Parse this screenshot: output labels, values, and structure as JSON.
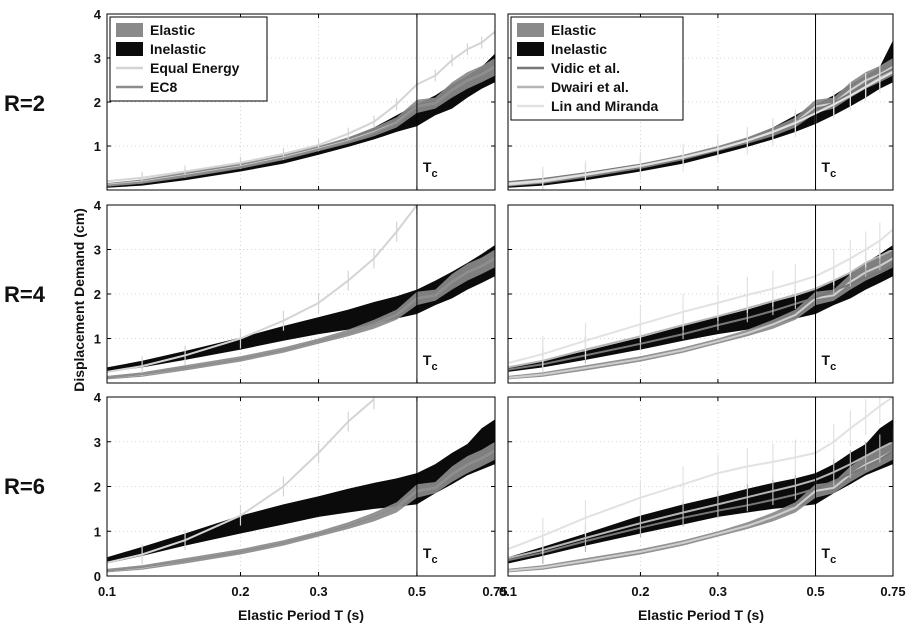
{
  "rows": [
    {
      "label": "R=2"
    },
    {
      "label": "R=4"
    },
    {
      "label": "R=6"
    }
  ],
  "xlabel": "Elastic Period T (s)",
  "ylabel": "Displacement Demand (cm)",
  "tc_label": "T",
  "tc_sub": "c",
  "xtick_labels": [
    "0.1",
    "0.2",
    "0.3",
    "0.5",
    "0.75"
  ],
  "ytick_labels_top": [
    "1",
    "2",
    "3",
    "4"
  ],
  "ytick_labels_mid": [
    "1",
    "2",
    "3",
    "4"
  ],
  "ytick_labels_bot": [
    "0",
    "1",
    "2",
    "3",
    "4"
  ],
  "colors": {
    "elastic": "#8a8a8a",
    "inelastic": "#0b0b0b",
    "equal_energy": "#d4d4d4",
    "ec8": "#8c8c8c",
    "vidic": "#777777",
    "dwairi": "#b5b5b5",
    "lin_miranda": "#e2e2e2",
    "mean_line": "#cfcfcf"
  },
  "legend_left": [
    {
      "name": "Elastic",
      "kind": "patch",
      "color_key": "elastic"
    },
    {
      "name": "Inelastic",
      "kind": "patch",
      "color_key": "inelastic"
    },
    {
      "name": "Equal Energy",
      "kind": "line",
      "color_key": "equal_energy"
    },
    {
      "name": "EC8",
      "kind": "line",
      "color_key": "ec8"
    }
  ],
  "legend_right": [
    {
      "name": "Elastic",
      "kind": "patch",
      "color_key": "elastic"
    },
    {
      "name": "Inelastic",
      "kind": "patch",
      "color_key": "inelastic"
    },
    {
      "name": "Vidic et al.",
      "kind": "line",
      "color_key": "vidic"
    },
    {
      "name": "Dwairi et al.",
      "kind": "line",
      "color_key": "dwairi"
    },
    {
      "name": "Lin and Miranda",
      "kind": "line",
      "color_key": "lin_miranda"
    }
  ],
  "chart_data": {
    "type": "area",
    "xscale": "log",
    "xlim": [
      0.1,
      0.75
    ],
    "ylim": [
      0,
      4
    ],
    "xticks": [
      0.1,
      0.2,
      0.3,
      0.5,
      0.75
    ],
    "tc": 0.5,
    "grid": true,
    "x": [
      0.1,
      0.12,
      0.15,
      0.2,
      0.25,
      0.3,
      0.35,
      0.4,
      0.45,
      0.5,
      0.55,
      0.6,
      0.65,
      0.7,
      0.75
    ],
    "elastic_band": {
      "lower": [
        0.08,
        0.14,
        0.28,
        0.48,
        0.68,
        0.88,
        1.05,
        1.22,
        1.42,
        1.75,
        1.85,
        2.1,
        2.3,
        2.45,
        2.6
      ],
      "upper": [
        0.16,
        0.24,
        0.4,
        0.6,
        0.8,
        1.0,
        1.2,
        1.42,
        1.65,
        2.05,
        2.1,
        2.45,
        2.68,
        2.82,
        3.0
      ],
      "mean": [
        0.12,
        0.19,
        0.34,
        0.54,
        0.74,
        0.94,
        1.12,
        1.32,
        1.53,
        1.9,
        1.97,
        2.27,
        2.49,
        2.63,
        2.8
      ]
    },
    "panels": [
      {
        "row": "R=2",
        "column": "left",
        "inelastic_lower": [
          0.05,
          0.1,
          0.22,
          0.42,
          0.6,
          0.8,
          0.98,
          1.15,
          1.32,
          1.45,
          1.7,
          1.85,
          2.1,
          2.3,
          2.45
        ],
        "inelastic_upper": [
          0.15,
          0.22,
          0.38,
          0.58,
          0.78,
          0.98,
          1.18,
          1.42,
          1.7,
          1.95,
          2.15,
          2.4,
          2.6,
          2.8,
          3.1
        ],
        "series": [
          {
            "name": "Equal Energy",
            "color_key": "equal_energy",
            "values": [
              0.2,
              0.28,
              0.42,
              0.62,
              0.82,
              1.02,
              1.28,
              1.55,
              1.95,
              2.4,
              2.6,
              2.95,
              3.2,
              3.35,
              3.6
            ]
          },
          {
            "name": "EC8",
            "color_key": "ec8",
            "values": [
              0.1,
              0.17,
              0.32,
              0.52,
              0.72,
              0.92,
              1.1,
              1.3,
              1.52,
              1.9,
              1.97,
              2.27,
              2.49,
              2.63,
              2.8
            ]
          }
        ]
      },
      {
        "row": "R=2",
        "column": "right",
        "inelastic_lower": [
          0.05,
          0.1,
          0.22,
          0.42,
          0.6,
          0.8,
          0.98,
          1.15,
          1.32,
          1.5,
          1.7,
          1.9,
          2.1,
          2.3,
          2.45
        ],
        "inelastic_upper": [
          0.15,
          0.22,
          0.38,
          0.58,
          0.78,
          0.98,
          1.18,
          1.42,
          1.7,
          1.95,
          2.15,
          2.4,
          2.6,
          2.8,
          3.4
        ],
        "series": [
          {
            "name": "Vidic et al.",
            "color_key": "vidic",
            "values": [
              0.18,
              0.25,
              0.38,
              0.57,
              0.76,
              0.95,
              1.14,
              1.34,
              1.55,
              1.78,
              1.98,
              2.2,
              2.4,
              2.6,
              2.75
            ]
          },
          {
            "name": "Dwairi et al.",
            "color_key": "dwairi",
            "values": [
              0.15,
              0.22,
              0.36,
              0.55,
              0.75,
              0.94,
              1.13,
              1.33,
              1.54,
              1.75,
              1.95,
              2.15,
              2.35,
              2.55,
              2.7
            ]
          },
          {
            "name": "Lin and Miranda",
            "color_key": "lin_miranda",
            "values": [
              0.14,
              0.21,
              0.35,
              0.55,
              0.74,
              0.93,
              1.12,
              1.32,
              1.52,
              1.74,
              1.94,
              2.14,
              2.34,
              2.52,
              2.68
            ]
          }
        ]
      },
      {
        "row": "R=4",
        "column": "left",
        "inelastic_lower": [
          0.25,
          0.35,
          0.52,
          0.75,
          0.95,
          1.1,
          1.2,
          1.32,
          1.45,
          1.55,
          1.75,
          1.9,
          2.1,
          2.25,
          2.4
        ],
        "inelastic_upper": [
          0.35,
          0.5,
          0.72,
          1.02,
          1.28,
          1.48,
          1.65,
          1.82,
          1.95,
          2.1,
          2.3,
          2.5,
          2.7,
          2.9,
          3.1
        ],
        "series": [
          {
            "name": "Equal Energy",
            "color_key": "equal_energy",
            "values": [
              0.25,
              0.38,
              0.62,
              1.0,
              1.4,
              1.8,
              2.3,
              2.8,
              3.4,
              4.0
            ]
          },
          {
            "name": "EC8",
            "color_key": "ec8",
            "values": [
              0.12,
              0.2,
              0.34,
              0.54,
              0.74,
              0.94,
              1.12,
              1.32,
              1.53,
              1.9,
              1.97,
              2.27,
              2.49,
              2.63,
              2.8
            ]
          }
        ]
      },
      {
        "row": "R=4",
        "column": "right",
        "inelastic_lower": [
          0.25,
          0.35,
          0.52,
          0.75,
          0.95,
          1.1,
          1.2,
          1.32,
          1.45,
          1.55,
          1.75,
          1.9,
          2.1,
          2.25,
          2.4
        ],
        "inelastic_upper": [
          0.35,
          0.5,
          0.72,
          1.02,
          1.28,
          1.48,
          1.65,
          1.82,
          1.95,
          2.1,
          2.3,
          2.5,
          2.7,
          2.9,
          3.1
        ],
        "series": [
          {
            "name": "Vidic et al.",
            "color_key": "vidic",
            "values": [
              0.3,
              0.42,
              0.62,
              0.88,
              1.1,
              1.3,
              1.46,
              1.62,
              1.78,
              1.92,
              2.08,
              2.22,
              2.38,
              2.5,
              2.65
            ]
          },
          {
            "name": "Dwairi et al.",
            "color_key": "dwairi",
            "values": [
              0.35,
              0.5,
              0.75,
              1.05,
              1.3,
              1.5,
              1.68,
              1.84,
              1.98,
              2.12,
              2.3,
              2.48,
              2.7,
              2.85,
              3.0
            ]
          },
          {
            "name": "Lin and Miranda",
            "color_key": "lin_miranda",
            "values": [
              0.45,
              0.65,
              0.95,
              1.32,
              1.6,
              1.8,
              1.98,
              2.12,
              2.26,
              2.4,
              2.6,
              2.8,
              3.0,
              3.2,
              3.45
            ]
          }
        ]
      },
      {
        "row": "R=6",
        "column": "left",
        "inelastic_lower": [
          0.28,
          0.45,
          0.68,
          0.95,
          1.15,
          1.32,
          1.42,
          1.5,
          1.55,
          1.6,
          1.85,
          2.05,
          2.25,
          2.38,
          2.5
        ],
        "inelastic_upper": [
          0.42,
          0.65,
          0.95,
          1.35,
          1.6,
          1.78,
          1.95,
          2.08,
          2.18,
          2.3,
          2.5,
          2.75,
          2.95,
          3.3,
          3.5
        ],
        "series": [
          {
            "name": "Equal Energy",
            "color_key": "equal_energy",
            "values": [
              0.3,
              0.48,
              0.8,
              1.35,
              2.0,
              2.75,
              3.45,
              3.95
            ]
          },
          {
            "name": "EC8",
            "color_key": "ec8",
            "values": [
              0.12,
              0.2,
              0.34,
              0.54,
              0.74,
              0.94,
              1.12,
              1.32,
              1.53,
              1.9,
              1.97,
              2.27,
              2.49,
              2.63,
              2.8
            ]
          }
        ]
      },
      {
        "row": "R=6",
        "column": "right",
        "inelastic_lower": [
          0.28,
          0.45,
          0.68,
          0.95,
          1.15,
          1.32,
          1.42,
          1.5,
          1.55,
          1.6,
          1.85,
          2.05,
          2.25,
          2.38,
          2.5
        ],
        "inelastic_upper": [
          0.42,
          0.65,
          0.95,
          1.35,
          1.6,
          1.78,
          1.95,
          2.08,
          2.18,
          2.3,
          2.5,
          2.75,
          2.95,
          3.3,
          3.5
        ],
        "series": [
          {
            "name": "Vidic et al.",
            "color_key": "vidic",
            "values": [
              0.35,
              0.52,
              0.78,
              1.08,
              1.3,
              1.46,
              1.58,
              1.7,
              1.82,
              1.95,
              2.12,
              2.28,
              2.45,
              2.6,
              2.8
            ]
          },
          {
            "name": "Dwairi et al.",
            "color_key": "dwairi",
            "values": [
              0.4,
              0.58,
              0.85,
              1.18,
              1.42,
              1.6,
              1.76,
              1.9,
              2.02,
              2.15,
              2.32,
              2.5,
              2.68,
              2.85,
              3.0
            ]
          },
          {
            "name": "Lin and Miranda",
            "color_key": "lin_miranda",
            "values": [
              0.6,
              0.9,
              1.3,
              1.75,
              2.05,
              2.3,
              2.45,
              2.55,
              2.65,
              2.75,
              3.0,
              3.3,
              3.55,
              3.8,
              4.0
            ]
          }
        ]
      }
    ]
  }
}
